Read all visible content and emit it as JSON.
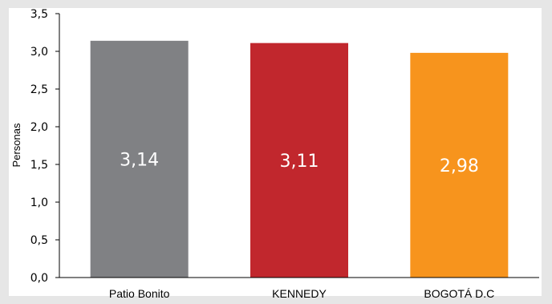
{
  "chart_data": {
    "type": "bar",
    "categories": [
      "Patio Bonito",
      "KENNEDY",
      "BOGOTÁ D.C"
    ],
    "values": [
      3.14,
      3.11,
      2.98
    ],
    "value_labels": [
      "3,14",
      "3,11",
      "2,98"
    ],
    "colors": [
      "#808184",
      "#c1272d",
      "#f7941d"
    ],
    "title": "",
    "xlabel": "",
    "ylabel": "Personas",
    "ylim": [
      0,
      3.5
    ],
    "yticks": [
      0,
      0.5,
      1.0,
      1.5,
      2.0,
      2.5,
      3.0,
      3.5
    ],
    "ytick_labels": [
      "0,0",
      "0,5",
      "1,0",
      "1,5",
      "2,0",
      "2,5",
      "3,0",
      "3,5"
    ],
    "grid": false,
    "legend": "none"
  }
}
